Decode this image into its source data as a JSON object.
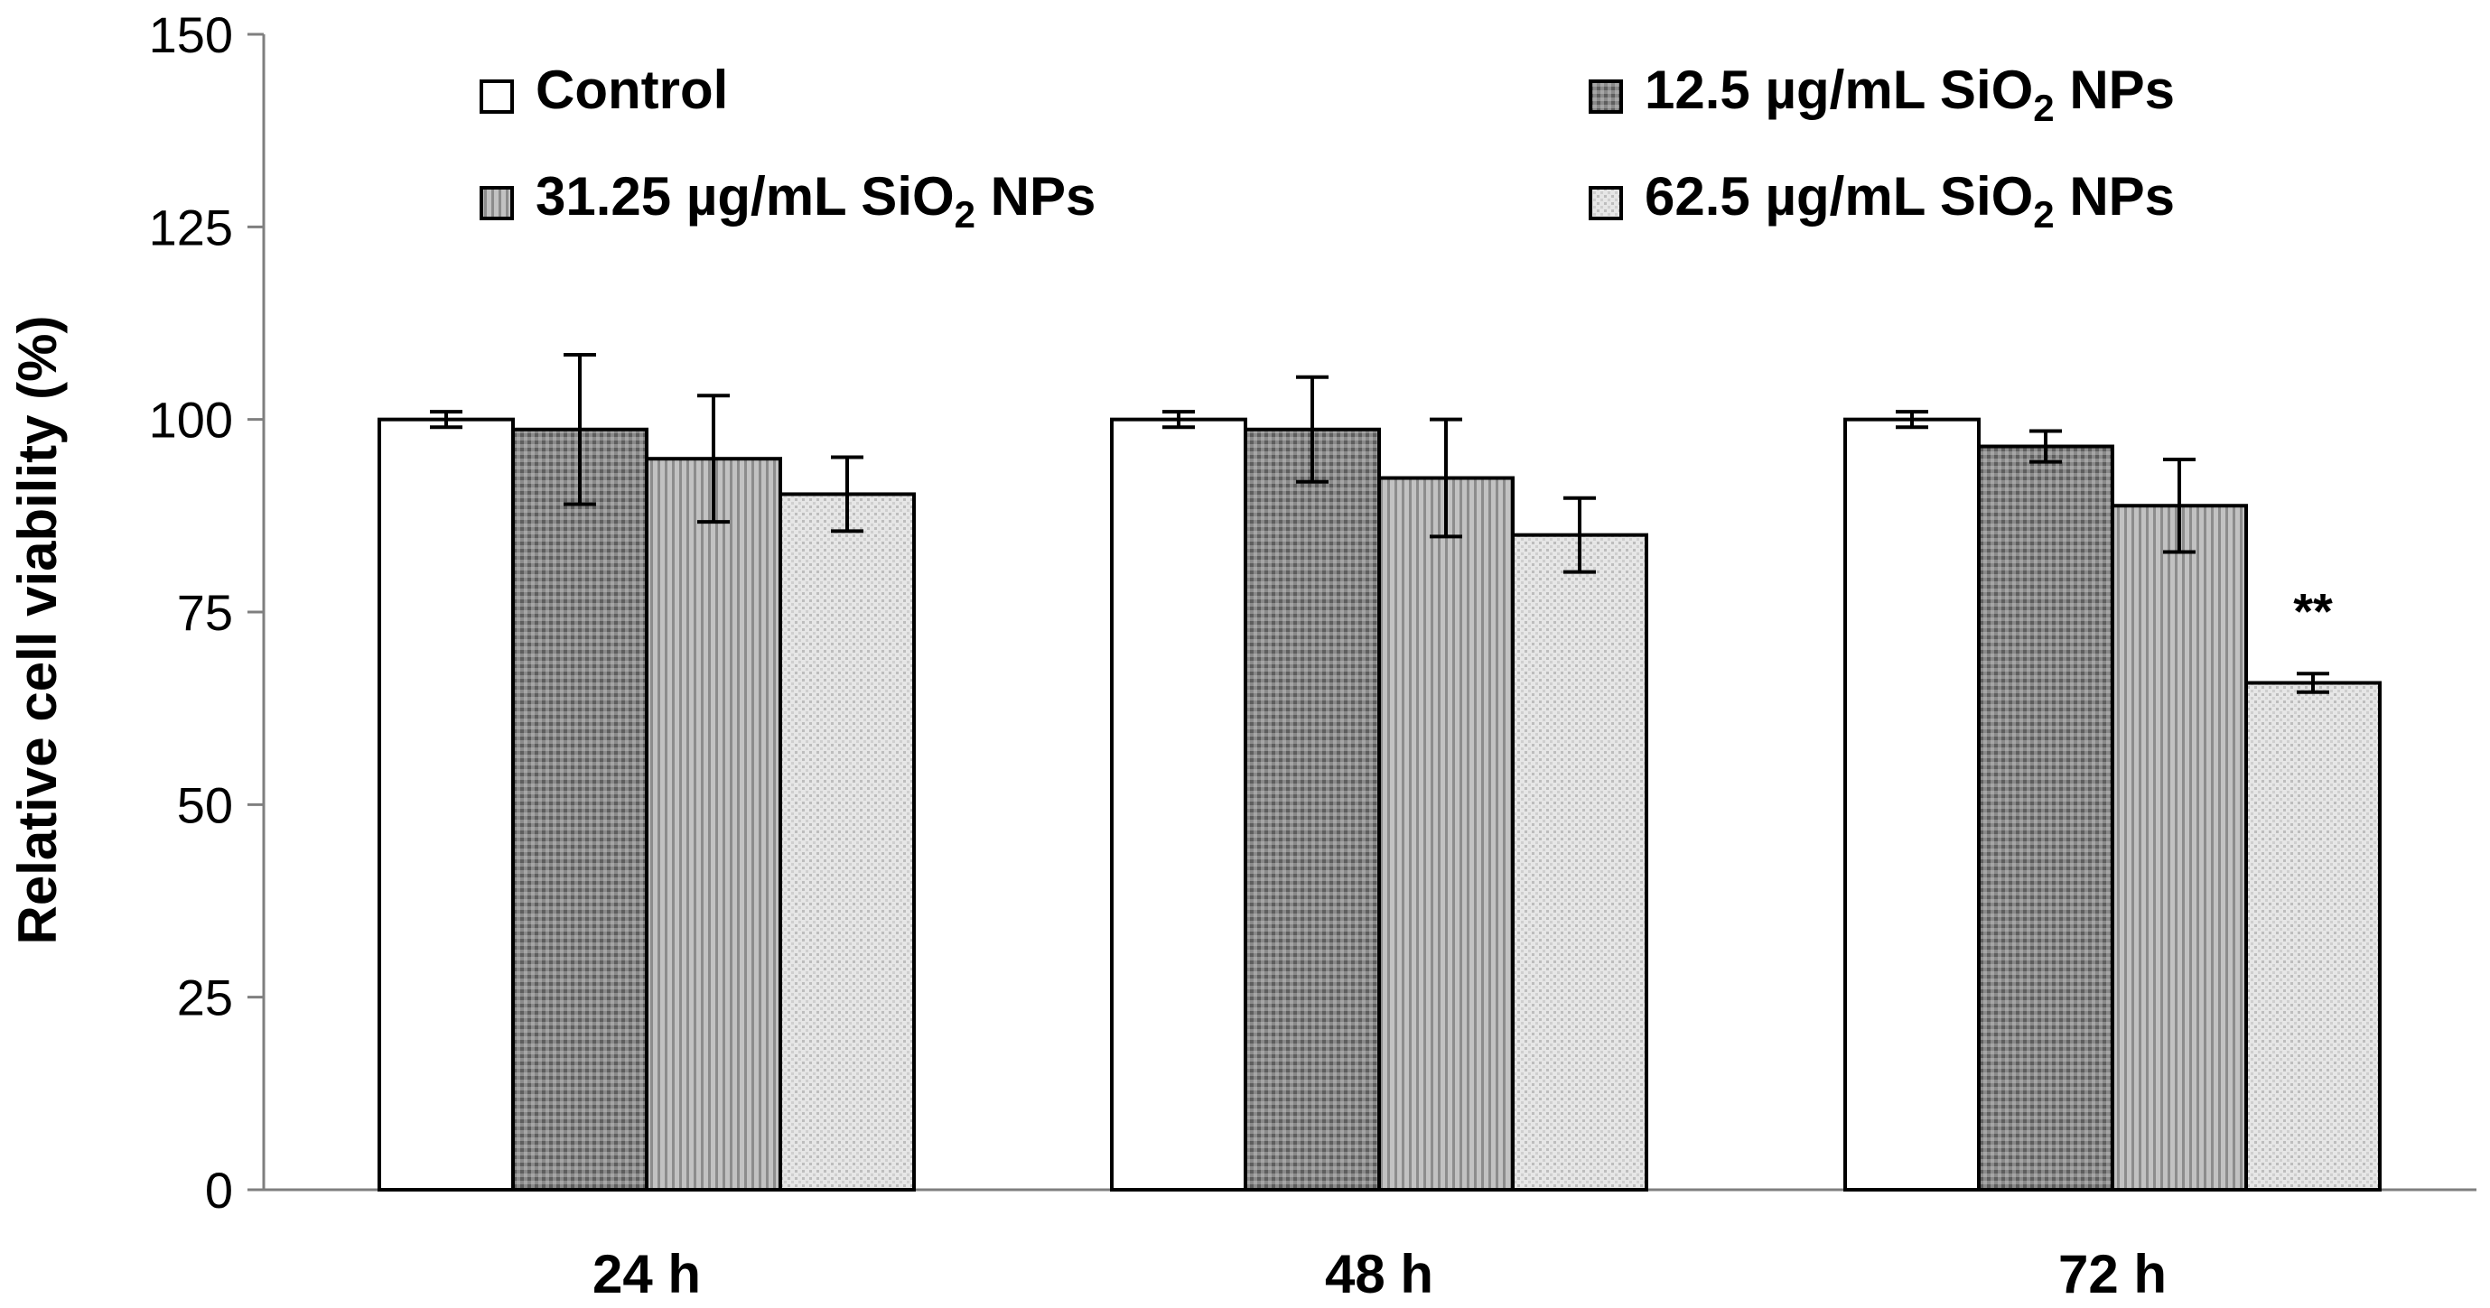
{
  "chart_data": {
    "type": "bar",
    "title": "",
    "xlabel": "",
    "ylabel": "Relative cell viability (%)",
    "ylim": [
      0,
      150
    ],
    "yticks": [
      0,
      25,
      50,
      75,
      100,
      125,
      150
    ],
    "grid": false,
    "legend_position": "top",
    "categories": [
      "24 h",
      "48 h",
      "72 h"
    ],
    "series": [
      {
        "name": "Control",
        "name_prefix": "Control",
        "name_sub": "",
        "name_suffix": "",
        "fill": "#ffffff",
        "pattern": "none",
        "values": [
          100,
          100,
          100
        ],
        "errors": [
          1,
          1,
          1
        ]
      },
      {
        "name": "12.5 µg/mL SiO2 NPs",
        "name_prefix": "12.5 µg/mL SiO",
        "name_sub": "2",
        "name_suffix": " NPs",
        "fill": "#7f7f7f",
        "pattern": "dark",
        "values": [
          98.7,
          98.7,
          96.5
        ],
        "errors": [
          9.7,
          6.8,
          2.0
        ]
      },
      {
        "name": "31.25 µg/mL SiO2 NPs",
        "name_prefix": "31.25 µg/mL SiO",
        "name_sub": "2",
        "name_suffix": " NPs",
        "fill": "#b3b3b3",
        "pattern": "medium",
        "values": [
          94.9,
          92.4,
          88.8
        ],
        "errors": [
          8.2,
          7.6,
          6.0
        ]
      },
      {
        "name": "62.5 µg/mL SiO2 NPs",
        "name_prefix": "62.5 µg/mL SiO",
        "name_sub": "2",
        "name_suffix": " NPs",
        "fill": "#dcdcdc",
        "pattern": "light",
        "values": [
          90.3,
          85.0,
          65.8
        ],
        "errors": [
          4.8,
          4.8,
          1.2
        ]
      }
    ],
    "annotations": [
      {
        "text": "**",
        "category": "72 h",
        "series": "62.5 µg/mL SiO2 NPs"
      }
    ]
  }
}
